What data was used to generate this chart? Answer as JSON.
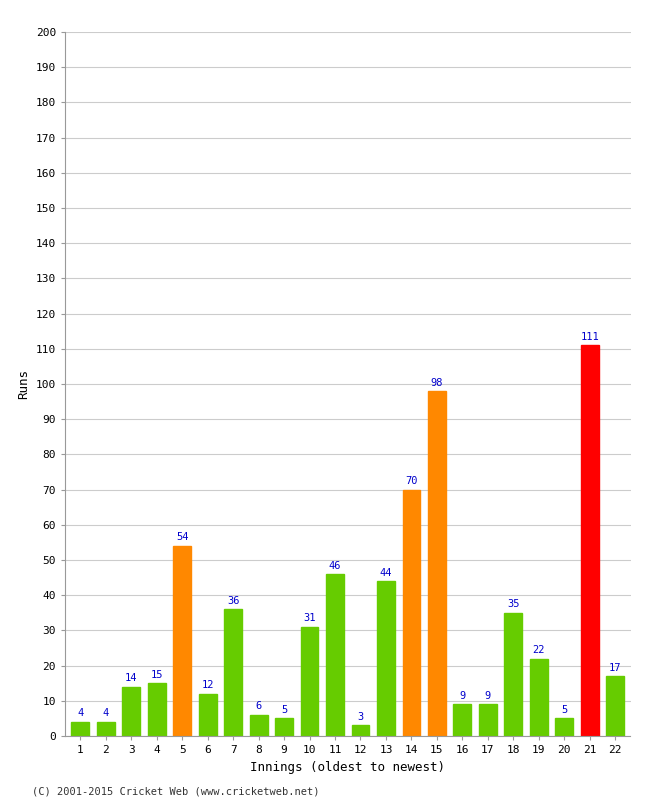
{
  "xlabel": "Innings (oldest to newest)",
  "ylabel": "Runs",
  "categories": [
    "1",
    "2",
    "3",
    "4",
    "5",
    "6",
    "7",
    "8",
    "9",
    "10",
    "11",
    "12",
    "13",
    "14",
    "15",
    "16",
    "17",
    "18",
    "19",
    "20",
    "21",
    "22"
  ],
  "values": [
    4,
    4,
    14,
    15,
    54,
    12,
    36,
    6,
    5,
    31,
    46,
    3,
    44,
    70,
    98,
    9,
    9,
    35,
    22,
    5,
    111,
    17
  ],
  "colors": [
    "#66cc00",
    "#66cc00",
    "#66cc00",
    "#66cc00",
    "#ff8800",
    "#66cc00",
    "#66cc00",
    "#66cc00",
    "#66cc00",
    "#66cc00",
    "#66cc00",
    "#66cc00",
    "#66cc00",
    "#ff8800",
    "#ff8800",
    "#66cc00",
    "#66cc00",
    "#66cc00",
    "#66cc00",
    "#66cc00",
    "#ff0000",
    "#66cc00"
  ],
  "label_color": "#0000cc",
  "ylim": [
    0,
    200
  ],
  "yticks": [
    0,
    10,
    20,
    30,
    40,
    50,
    60,
    70,
    80,
    90,
    100,
    110,
    120,
    130,
    140,
    150,
    160,
    170,
    180,
    190,
    200
  ],
  "background_color": "#ffffff",
  "grid_color": "#cccccc",
  "footer": "(C) 2001-2015 Cricket Web (www.cricketweb.net)"
}
